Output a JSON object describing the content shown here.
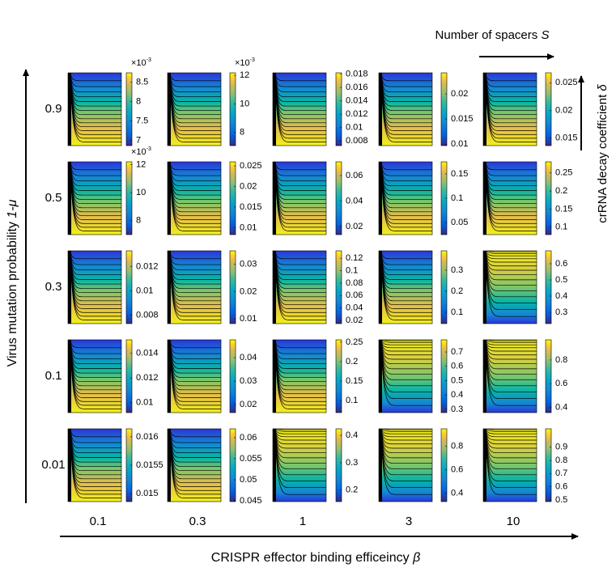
{
  "chart_data": {
    "type": "contour_grid",
    "x_label": "CRISPR effector binding efficeincy ",
    "x_symbol": "β",
    "y_label": "Virus mutation probability ",
    "y_symbol": "1-μ",
    "inner_x_label": "Number of spacers ",
    "inner_x_symbol": "S",
    "inner_y_label": "crRNA decay coefficient ",
    "inner_y_symbol": "δ",
    "columns": [
      "0.1",
      "0.3",
      "1",
      "3",
      "10"
    ],
    "rows": [
      "0.9",
      "0.5",
      "0.3",
      "0.1",
      "0.01"
    ],
    "panels": [
      [
        {
          "scale": "×10",
          "scale_exp": "-3",
          "clim": [
            6.87,
            8.74
          ],
          "cticks": [
            7,
            7.5,
            8,
            8.5
          ]
        },
        {
          "scale": "×10",
          "scale_exp": "-3",
          "clim": [
            7.08,
            12.18
          ],
          "cticks": [
            8,
            10,
            12
          ]
        },
        {
          "clim": [
            0.0073,
            0.0182
          ],
          "cticks": [
            0.008,
            0.01,
            0.012,
            0.014,
            0.016,
            0.018
          ]
        },
        {
          "clim": [
            0.0097,
            0.0242
          ],
          "cticks": [
            0.01,
            0.015,
            0.02
          ]
        },
        {
          "clim": [
            0.0136,
            0.0268
          ],
          "cticks": [
            0.015,
            0.02,
            0.025
          ]
        }
      ],
      [
        {
          "scale": "×10",
          "scale_exp": "-3",
          "clim": [
            7.0,
            12.2
          ],
          "cticks": [
            8,
            10,
            12
          ]
        },
        {
          "clim": [
            0.0083,
            0.026
          ],
          "cticks": [
            0.01,
            0.015,
            0.02,
            0.025
          ]
        },
        {
          "clim": [
            0.0137,
            0.0708
          ],
          "cticks": [
            0.02,
            0.04,
            0.06
          ]
        },
        {
          "clim": [
            0.025,
            0.175
          ],
          "cticks": [
            0.05,
            0.1,
            0.15
          ]
        },
        {
          "clim": [
            0.079,
            0.281
          ],
          "cticks": [
            0.1,
            0.15,
            0.2,
            0.25
          ]
        }
      ],
      [
        {
          "clim": [
            0.0073,
            0.0133
          ],
          "cticks": [
            0.008,
            0.01,
            0.012
          ]
        },
        {
          "clim": [
            0.0082,
            0.035
          ],
          "cticks": [
            0.01,
            0.02,
            0.03
          ]
        },
        {
          "clim": [
            0.0148,
            0.132
          ],
          "cticks": [
            0.02,
            0.04,
            0.06,
            0.08,
            0.1,
            0.12
          ]
        },
        {
          "clim": [
            0.046,
            0.392
          ],
          "cticks": [
            0.1,
            0.2,
            0.3
          ]
        },
        {
          "clim": [
            0.23,
            0.68
          ],
          "cticks": [
            0.3,
            0.4,
            0.5,
            0.6
          ]
        }
      ],
      [
        {
          "clim": [
            0.0092,
            0.0151
          ],
          "cticks": [
            0.01,
            0.012,
            0.014
          ]
        },
        {
          "clim": [
            0.0166,
            0.0476
          ],
          "cticks": [
            0.02,
            0.03,
            0.04
          ]
        },
        {
          "clim": [
            0.069,
            0.256
          ],
          "cticks": [
            0.1,
            0.15,
            0.2,
            0.25
          ]
        },
        {
          "clim": [
            0.277,
            0.785
          ],
          "cticks": [
            0.3,
            0.4,
            0.5,
            0.6,
            0.7
          ]
        },
        {
          "clim": [
            0.356,
            0.97
          ],
          "cticks": [
            0.4,
            0.6,
            0.8
          ]
        }
      ],
      [
        {
          "clim": [
            0.01486,
            0.01614
          ],
          "cticks": [
            0.015,
            0.0155,
            0.016
          ]
        },
        {
          "clim": [
            0.0448,
            0.0621
          ],
          "cticks": [
            0.045,
            0.05,
            0.055,
            0.06
          ]
        },
        {
          "clim": [
            0.158,
            0.424
          ],
          "cticks": [
            0.2,
            0.3,
            0.4
          ]
        },
        {
          "clim": [
            0.33,
            0.95
          ],
          "cticks": [
            0.4,
            0.6,
            0.8
          ]
        },
        {
          "clim": [
            0.487,
            1.04
          ],
          "cticks": [
            0.5,
            0.6,
            0.7,
            0.8,
            0.9
          ]
        }
      ]
    ]
  }
}
